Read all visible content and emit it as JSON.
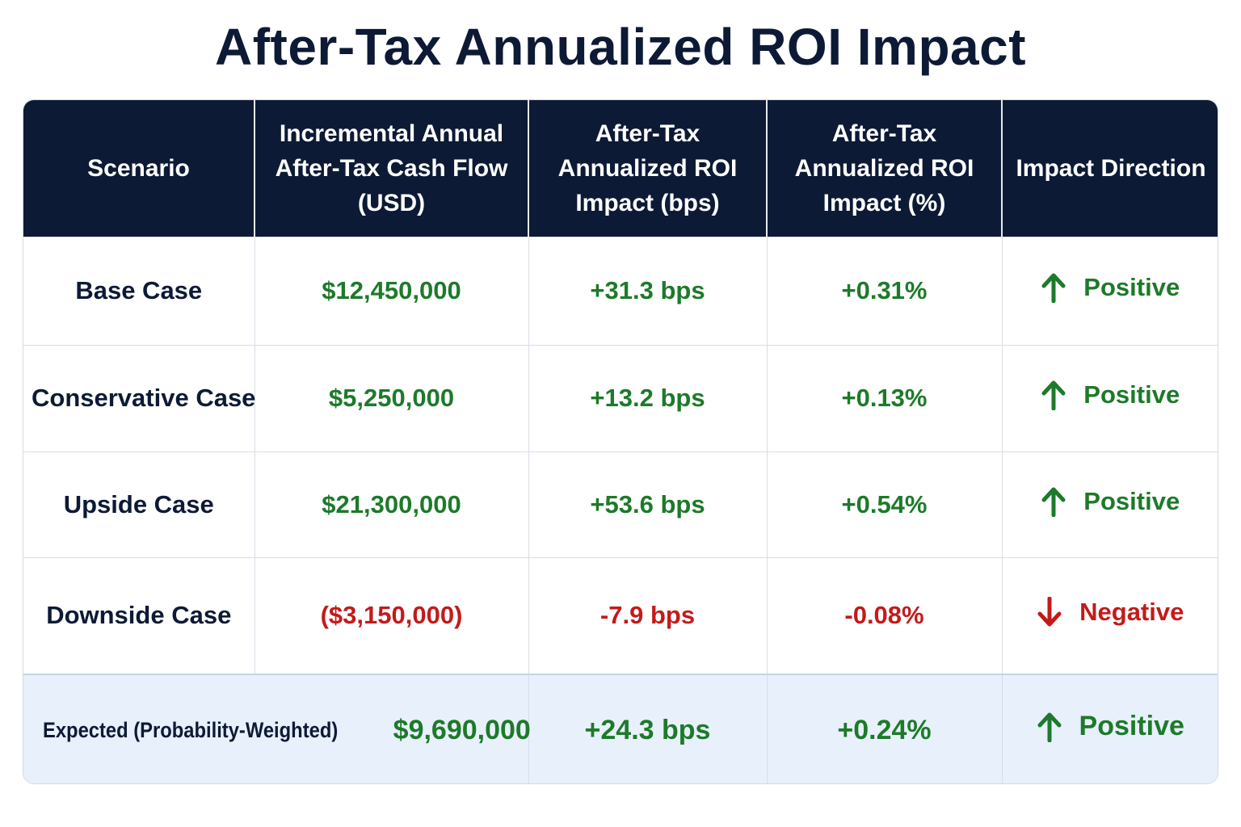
{
  "title": "After-Tax Annualized ROI Impact",
  "colors": {
    "header_bg": "#0d1a36",
    "positive": "#1d7a2a",
    "negative": "#c41a1a",
    "expected_row_bg": "#e8f0fc"
  },
  "headers": [
    "Scenario",
    "Incremental Annual After-Tax Cash Flow (USD)",
    "After-Tax Annualized ROI Impact (bps)",
    "After-Tax Annualized ROI Impact (%)",
    "Impact Direction"
  ],
  "rows": [
    {
      "scenario": "Base Case",
      "cash_flow": "$12,450,000",
      "bps": "+31.3 bps",
      "pct": "+0.31%",
      "direction": "Positive",
      "direction_icon": "arrow-up-icon"
    },
    {
      "scenario": "Conservative Case",
      "cash_flow": "$5,250,000",
      "bps": "+13.2 bps",
      "pct": "+0.13%",
      "direction": "Positive",
      "direction_icon": "arrow-up-icon"
    },
    {
      "scenario": "Upside Case",
      "cash_flow": "$21,300,000",
      "bps": "+53.6 bps",
      "pct": "+0.54%",
      "direction": "Positive",
      "direction_icon": "arrow-up-icon"
    },
    {
      "scenario": "Downside Case",
      "cash_flow": "($3,150,000)",
      "bps": "-7.9 bps",
      "pct": "-0.08%",
      "direction": "Negative",
      "direction_icon": "arrow-down-icon"
    }
  ],
  "expected": {
    "scenario": "Expected (Probability-Weighted)",
    "cash_flow": "$9,690,000",
    "bps": "+24.3 bps",
    "pct": "+0.24%",
    "direction": "Positive",
    "direction_icon": "arrow-up-icon"
  }
}
